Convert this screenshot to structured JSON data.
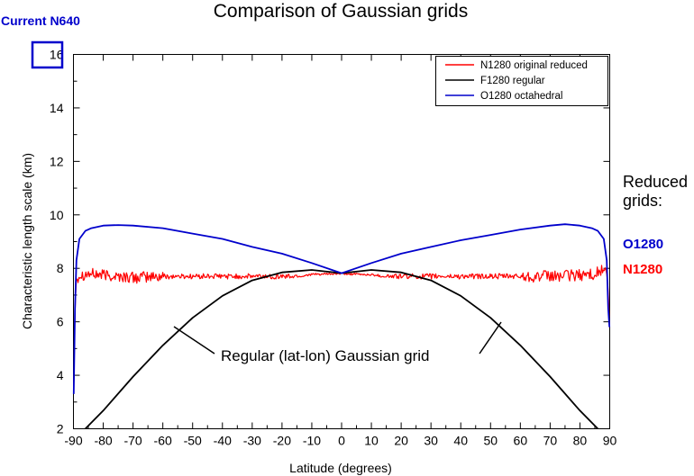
{
  "chart_data": {
    "type": "line",
    "title": "Comparison of Gaussian grids",
    "xlabel": "Latitude (degrees)",
    "ylabel": "Characteristic length scale (km)",
    "xlim": [
      -90,
      90
    ],
    "ylim": [
      2,
      16
    ],
    "xticks": [
      -90,
      -80,
      -70,
      -60,
      -50,
      -40,
      -30,
      -20,
      -10,
      0,
      10,
      20,
      30,
      40,
      50,
      60,
      70,
      80,
      90
    ],
    "yticks": [
      2,
      4,
      6,
      8,
      10,
      12,
      14,
      16
    ],
    "grid": false,
    "legend_position": "top-right",
    "series": [
      {
        "name": "N1280 original reduced",
        "color": "#ff0000",
        "style": "noisy",
        "x": [
          -89.9,
          -89.5,
          -89,
          -88,
          -85,
          -80,
          -70,
          -60,
          -50,
          -40,
          -30,
          -20,
          -13,
          -12,
          -10,
          0,
          12,
          13,
          20,
          30,
          40,
          50,
          60,
          70,
          80,
          85,
          88,
          89,
          89.5,
          89.9
        ],
        "y": [
          3.5,
          6.5,
          7.6,
          7.75,
          7.8,
          7.75,
          7.65,
          7.7,
          7.7,
          7.7,
          7.7,
          7.7,
          7.7,
          7.75,
          7.77,
          7.8,
          7.75,
          7.7,
          7.7,
          7.7,
          7.7,
          7.7,
          7.7,
          7.7,
          7.75,
          7.8,
          7.95,
          7.8,
          7.2,
          5.8
        ]
      },
      {
        "name": "F1280 regular",
        "color": "#000000",
        "style": "smooth",
        "x": [
          -86,
          -80,
          -70,
          -60,
          -50,
          -40,
          -30,
          -20,
          -10,
          0,
          10,
          20,
          30,
          40,
          50,
          60,
          70,
          80,
          86
        ],
        "y": [
          2.0,
          2.68,
          3.95,
          5.12,
          6.15,
          6.97,
          7.55,
          7.85,
          7.94,
          7.82,
          7.94,
          7.85,
          7.55,
          6.97,
          6.15,
          5.12,
          3.95,
          2.68,
          2.0
        ]
      },
      {
        "name": "O1280 octahedral",
        "color": "#0000cc",
        "style": "smooth",
        "x": [
          -89.9,
          -89.5,
          -89,
          -88,
          -86,
          -84,
          -80,
          -75,
          -70,
          -60,
          -50,
          -40,
          -30,
          -20,
          -10,
          0,
          10,
          20,
          30,
          40,
          50,
          60,
          70,
          75,
          80,
          84,
          86,
          88,
          89,
          89.5,
          89.9
        ],
        "y": [
          3.3,
          6.5,
          8.3,
          9.1,
          9.4,
          9.5,
          9.6,
          9.62,
          9.6,
          9.5,
          9.3,
          9.1,
          8.8,
          8.55,
          8.2,
          7.82,
          8.2,
          8.55,
          8.8,
          9.05,
          9.25,
          9.45,
          9.6,
          9.65,
          9.6,
          9.5,
          9.4,
          9.1,
          8.3,
          6.5,
          5.8
        ]
      }
    ],
    "annotations": {
      "current_label": "Current N640",
      "boxed_tick": "16",
      "regular_grid_label": "Regular (lat-lon) Gaussian grid",
      "reduced_grids_line1": "Reduced",
      "reduced_grids_line2": "grids:",
      "o_label": "O1280",
      "n_label": "N1280",
      "o_color": "#0000cc",
      "n_color": "#ff0000"
    }
  }
}
